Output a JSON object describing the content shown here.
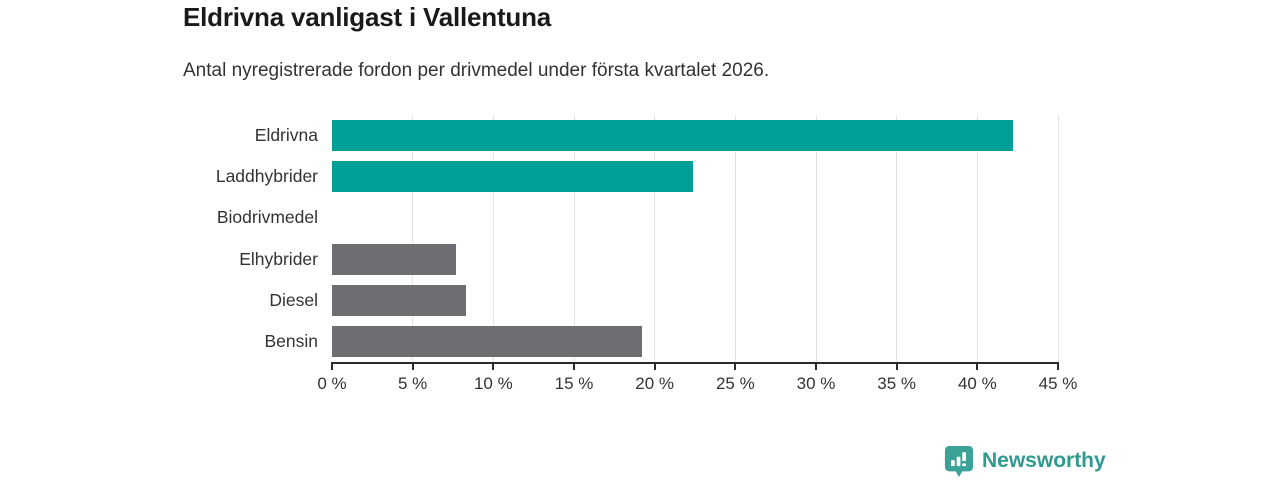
{
  "header": {
    "title": "Eldrivna vanligast i Vallentuna",
    "subtitle": "Antal nyregistrerade fordon per drivmedel under första kvartalet 2026."
  },
  "chart_data": {
    "type": "bar",
    "orientation": "horizontal",
    "title": "Eldrivna vanligast i Vallentuna",
    "subtitle": "Antal nyregistrerade fordon per drivmedel under första kvartalet 2026.",
    "categories": [
      "Eldrivna",
      "Laddhybrider",
      "Biodrivmedel",
      "Elhybrider",
      "Diesel",
      "Bensin"
    ],
    "values": [
      42.2,
      22.4,
      0,
      7.7,
      8.3,
      19.2
    ],
    "value_unit": "%",
    "xlim": [
      0,
      45
    ],
    "x_tick_values": [
      0,
      5,
      10,
      15,
      20,
      25,
      30,
      35,
      40,
      45
    ],
    "x_tick_labels": [
      "0 %",
      "5 %",
      "10 %",
      "15 %",
      "20 %",
      "25 %",
      "30 %",
      "35 %",
      "40 %",
      "45 %"
    ],
    "bar_colors": [
      "#00a099",
      "#00a099",
      "#00a099",
      "#6d6d72",
      "#6d6d72",
      "#6d6d72"
    ],
    "grid": "vertical-light",
    "legend": "none"
  },
  "footer": {
    "brand": "Newsworthy"
  },
  "colors": {
    "accent_teal": "#00a099",
    "neutral_gray": "#6d6d72",
    "title_text": "#1a1a1a",
    "body_text": "#333333",
    "gridline": "#e2e2e2",
    "axis": "#2b2b2b",
    "logo_teal": "#3aa296",
    "logo_text": "#2f9a8f"
  }
}
